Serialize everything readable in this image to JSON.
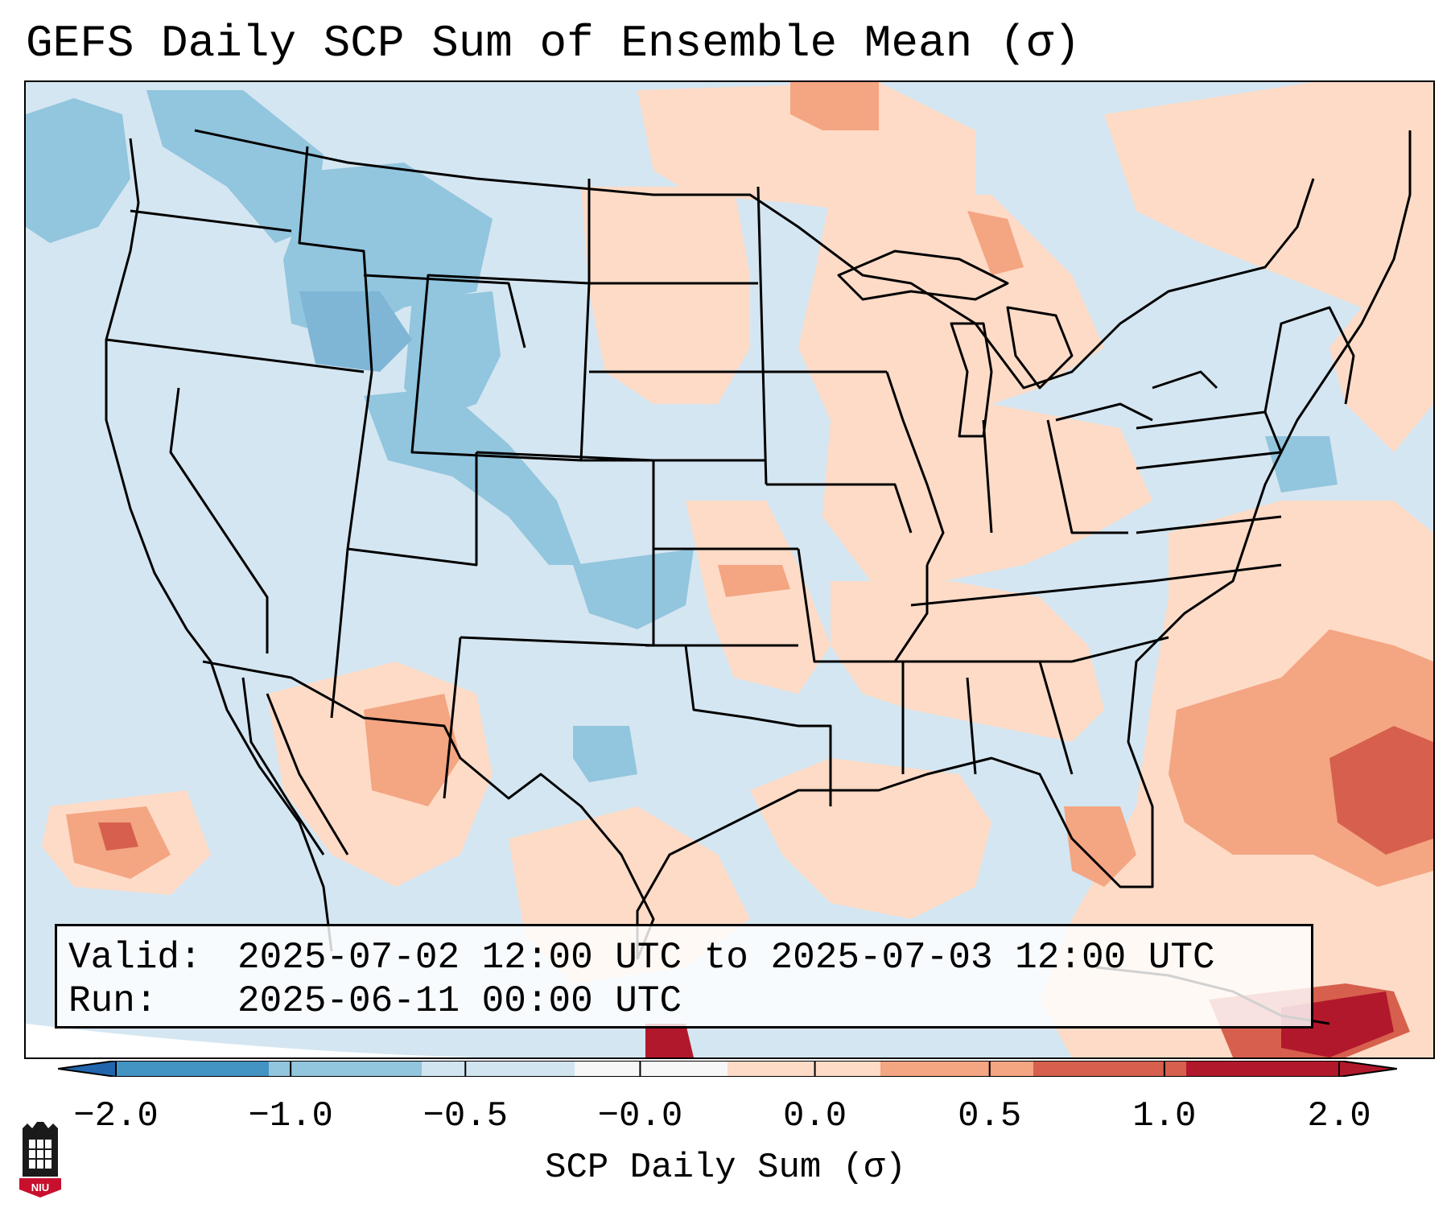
{
  "title": "GEFS Daily SCP Sum of Ensemble Mean (σ)",
  "info": {
    "valid_label": "Valid:",
    "valid_value": "2025-07-02 12:00 UTC to 2025-07-03 12:00 UTC",
    "run_label": "Run:",
    "run_value": "2025-06-11 00:00 UTC"
  },
  "colorbar": {
    "label": "SCP Daily Sum (σ)",
    "ticks": [
      "−2.0",
      "−1.0",
      "−0.5",
      "−0.0",
      "0.0",
      "0.5",
      "1.0",
      "2.0"
    ],
    "colors": [
      "#4393c3",
      "#92c5de",
      "#d1e5f0",
      "#f7f7f7",
      "#fddbc7",
      "#f4a582",
      "#d6604d",
      "#b2182b"
    ],
    "under_color": "#2166ac",
    "over_color": "#b2182b"
  },
  "logo": {
    "text": "NIU",
    "colors": {
      "red": "#c8102e",
      "black": "#1a1a1a"
    }
  },
  "map": {
    "background": "#d4e6f1",
    "ocean_edge": "#ffffff",
    "regions": [
      {
        "name": "pacific-northwest-blue",
        "level": "-1.0"
      },
      {
        "name": "idaho-montana-blue",
        "level": "-1.0"
      },
      {
        "name": "wyoming-blue",
        "level": "-1.0"
      },
      {
        "name": "utah-colorado-blue",
        "level": "-1.0"
      },
      {
        "name": "texas-panhandle-blue",
        "level": "-1.0"
      },
      {
        "name": "west-texas-blue",
        "level": "-1.0"
      },
      {
        "name": "atlantic-blue",
        "level": "-1.0"
      },
      {
        "name": "dakotas-minnesota-red",
        "level": "0.5"
      },
      {
        "name": "great-lakes-red",
        "level": "0.5"
      },
      {
        "name": "ohio-valley-red",
        "level": "0.5"
      },
      {
        "name": "southeast-red",
        "level": "0.5"
      },
      {
        "name": "arizona-new-mexico-red",
        "level": "1.0"
      },
      {
        "name": "west-atlantic-red",
        "level": "1.0"
      },
      {
        "name": "caribbean-red",
        "level": "2.0"
      },
      {
        "name": "east-pacific-red",
        "level": "1.0"
      },
      {
        "name": "canada-central-red",
        "level": "0.5"
      }
    ]
  }
}
